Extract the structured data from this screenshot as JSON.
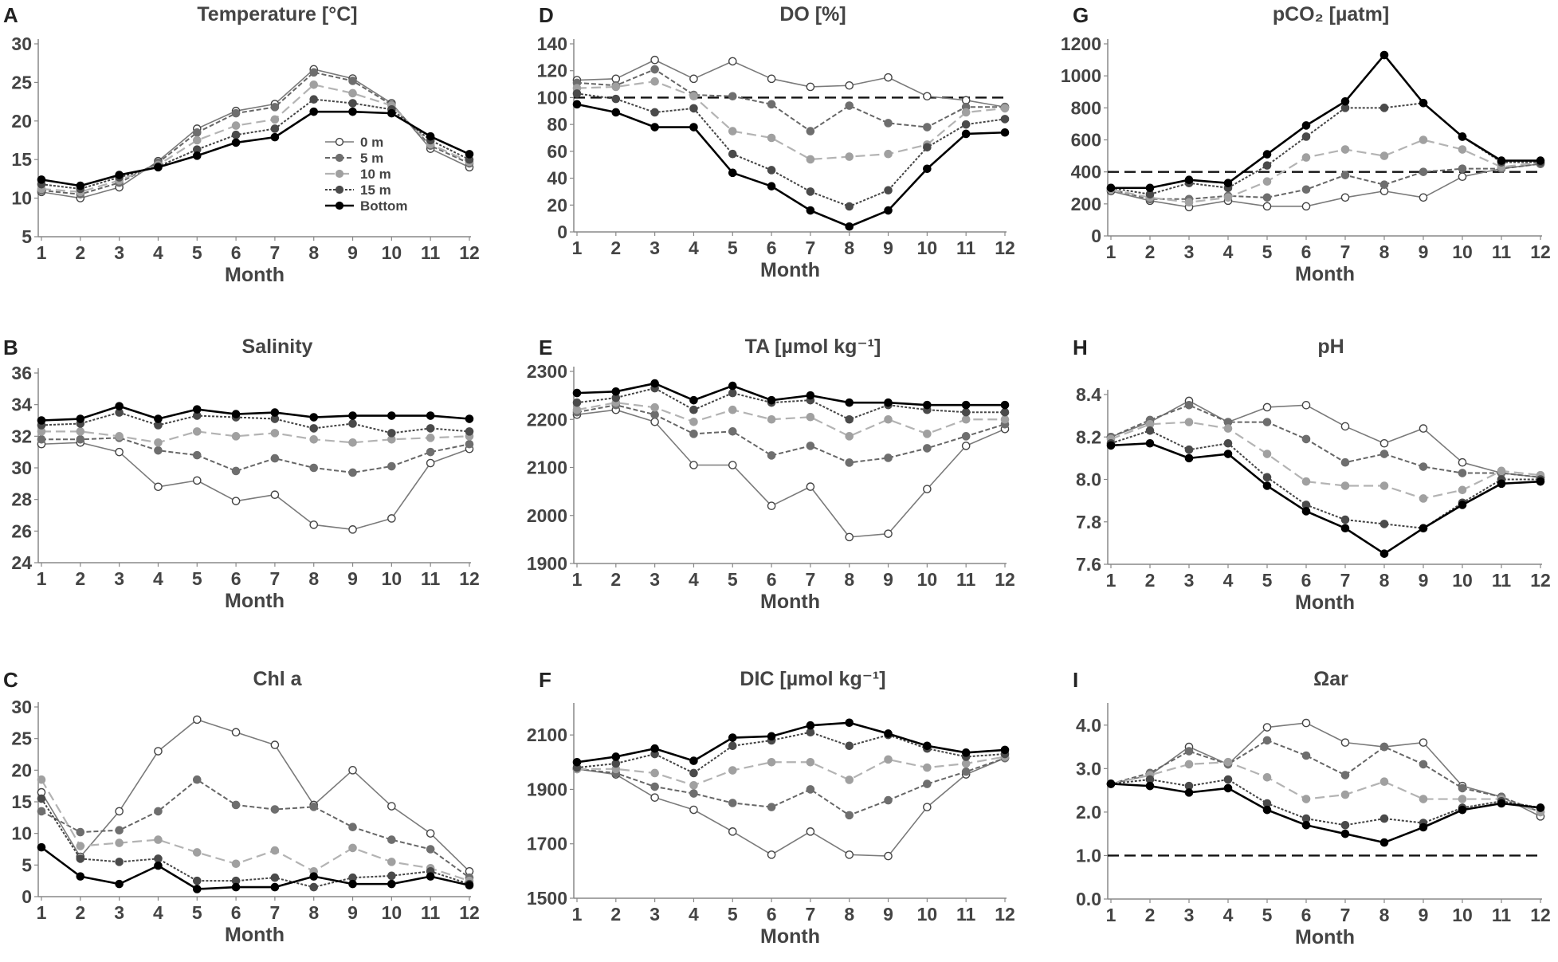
{
  "figure": {
    "x_label": "Month"
  },
  "legend": {
    "entries": [
      "0 m",
      "5 m",
      "10 m",
      "15 m",
      "Bottom"
    ]
  },
  "series_styles": [
    {
      "name": "0 m",
      "color": "#7a7a7a",
      "marker_fill": "#ffffff",
      "marker_stroke": "#444444",
      "dash": "none",
      "width": 1.6
    },
    {
      "name": "5 m",
      "color": "#666666",
      "marker_fill": "#6e6e6e",
      "marker_stroke": "#6e6e6e",
      "dash": "6,3",
      "width": 2
    },
    {
      "name": "10 m",
      "color": "#b3b3b3",
      "marker_fill": "#a0a0a0",
      "marker_stroke": "#a0a0a0",
      "dash": "12,6",
      "width": 2.2
    },
    {
      "name": "15 m",
      "color": "#444444",
      "marker_fill": "#4a4a4a",
      "marker_stroke": "#4a4a4a",
      "dash": "3,2",
      "width": 2
    },
    {
      "name": "Bottom",
      "color": "#000000",
      "marker_fill": "#000000",
      "marker_stroke": "#000000",
      "dash": "none",
      "width": 2.6
    }
  ],
  "chart_data": [
    {
      "panel": "A",
      "type": "line",
      "title": "Temperature [°C]",
      "xlabel": "Month",
      "x": [
        1,
        2,
        3,
        4,
        5,
        6,
        7,
        8,
        9,
        10,
        11,
        12
      ],
      "ylim": [
        5,
        30
      ],
      "yticks": [
        "5",
        "10",
        "15",
        "20",
        "25",
        "30"
      ],
      "yticks_values": [
        5,
        10,
        15,
        20,
        25,
        30
      ],
      "legend": true,
      "series": [
        {
          "name": "0 m",
          "values": [
            10.8,
            10,
            11.4,
            14.8,
            19,
            21.3,
            22.2,
            26.7,
            25.5,
            22.3,
            16.4,
            14
          ]
        },
        {
          "name": "5 m",
          "values": [
            11,
            10.5,
            12,
            14.6,
            18.5,
            21,
            21.8,
            26.3,
            25.2,
            22.1,
            16.8,
            14.5
          ]
        },
        {
          "name": "10 m",
          "values": [
            11.2,
            10.8,
            12.3,
            14.3,
            17.5,
            19.4,
            20.2,
            24.7,
            23.6,
            22,
            17,
            14.7
          ]
        },
        {
          "name": "15 m",
          "values": [
            11.8,
            11.2,
            12.7,
            14.1,
            16.3,
            18.2,
            19,
            22.8,
            22.3,
            21.5,
            17.5,
            15
          ]
        },
        {
          "name": "Bottom",
          "values": [
            12.4,
            11.6,
            13,
            14,
            15.5,
            17.2,
            17.9,
            21.2,
            21.2,
            21,
            18,
            15.7
          ]
        }
      ]
    },
    {
      "panel": "D",
      "type": "line",
      "title": "DO [%]",
      "xlabel": "Month",
      "x": [
        1,
        2,
        3,
        4,
        5,
        6,
        7,
        8,
        9,
        10,
        11,
        12
      ],
      "ylim": [
        0,
        140
      ],
      "yticks": [
        "0",
        "20",
        "40",
        "60",
        "80",
        "100",
        "120",
        "140"
      ],
      "yticks_values": [
        0,
        20,
        40,
        60,
        80,
        100,
        120,
        140
      ],
      "reference_line": 100,
      "series": [
        {
          "name": "0 m",
          "values": [
            113,
            114,
            128,
            114,
            127,
            114,
            108,
            109,
            115,
            101,
            98,
            93
          ]
        },
        {
          "name": "5 m",
          "values": [
            111,
            109,
            121,
            102,
            101,
            95,
            75,
            94,
            81,
            78,
            93,
            93
          ]
        },
        {
          "name": "10 m",
          "values": [
            107,
            108,
            112,
            101,
            75,
            70,
            54,
            56,
            58,
            65,
            89,
            92
          ]
        },
        {
          "name": "15 m",
          "values": [
            103,
            99,
            89,
            92,
            58,
            46,
            30,
            19,
            31,
            63,
            80,
            84
          ]
        },
        {
          "name": "Bottom",
          "values": [
            95,
            89,
            78,
            78,
            44,
            34,
            16,
            4,
            16,
            47,
            73,
            74
          ]
        }
      ]
    },
    {
      "panel": "G",
      "type": "line",
      "title": "pCO₂ [µatm]",
      "xlabel": "Month",
      "x": [
        1,
        2,
        3,
        4,
        5,
        6,
        7,
        8,
        9,
        10,
        11,
        12
      ],
      "ylim": [
        0,
        1200
      ],
      "yticks": [
        "0",
        "200",
        "400",
        "600",
        "800",
        "1000",
        "1200"
      ],
      "yticks_values": [
        0,
        200,
        400,
        600,
        800,
        1000,
        1200
      ],
      "reference_line": 400,
      "series": [
        {
          "name": "0 m",
          "values": [
            280,
            220,
            180,
            220,
            185,
            185,
            240,
            280,
            240,
            370,
            420,
            450
          ]
        },
        {
          "name": "5 m",
          "values": [
            290,
            230,
            230,
            250,
            240,
            290,
            380,
            320,
            400,
            420,
            420,
            450
          ]
        },
        {
          "name": "10 m",
          "values": [
            290,
            240,
            210,
            240,
            340,
            490,
            540,
            500,
            600,
            540,
            430,
            460
          ]
        },
        {
          "name": "15 m",
          "values": [
            300,
            260,
            330,
            300,
            440,
            620,
            800,
            800,
            830,
            620,
            460,
            460
          ]
        },
        {
          "name": "Bottom",
          "values": [
            300,
            300,
            350,
            330,
            510,
            690,
            840,
            1130,
            830,
            620,
            470,
            470
          ]
        }
      ]
    },
    {
      "panel": "B",
      "type": "line",
      "title": "Salinity",
      "xlabel": "Month",
      "x": [
        1,
        2,
        3,
        4,
        5,
        6,
        7,
        8,
        9,
        10,
        11,
        12
      ],
      "ylim": [
        24,
        36
      ],
      "yticks": [
        "24",
        "26",
        "28",
        "30",
        "32",
        "34",
        "36"
      ],
      "yticks_values": [
        24,
        26,
        28,
        30,
        32,
        34,
        36
      ],
      "series": [
        {
          "name": "0 m",
          "values": [
            31.5,
            31.6,
            31,
            28.8,
            29.2,
            27.9,
            28.3,
            26.4,
            26.1,
            26.8,
            30.3,
            31.2
          ]
        },
        {
          "name": "5 m",
          "values": [
            31.8,
            31.8,
            31.9,
            31.1,
            30.8,
            29.8,
            30.6,
            30,
            29.7,
            30.1,
            31,
            31.5
          ]
        },
        {
          "name": "10 m",
          "values": [
            32.3,
            32.3,
            32,
            31.6,
            32.3,
            32,
            32.2,
            31.8,
            31.6,
            31.8,
            31.9,
            32
          ]
        },
        {
          "name": "15 m",
          "values": [
            32.7,
            32.8,
            33.5,
            32.7,
            33.3,
            33.2,
            33.1,
            32.5,
            32.8,
            32.2,
            32.5,
            32.3
          ]
        },
        {
          "name": "Bottom",
          "values": [
            33,
            33.1,
            33.9,
            33.1,
            33.7,
            33.4,
            33.5,
            33.2,
            33.3,
            33.3,
            33.3,
            33.1
          ]
        }
      ]
    },
    {
      "panel": "E",
      "type": "line",
      "title": "TA [µmol kg⁻¹]",
      "xlabel": "Month",
      "x": [
        1,
        2,
        3,
        4,
        5,
        6,
        7,
        8,
        9,
        10,
        11,
        12
      ],
      "ylim": [
        1900,
        2300
      ],
      "yticks": [
        "1900",
        "2000",
        "2100",
        "2200",
        "2300"
      ],
      "yticks_values": [
        1900,
        2000,
        2100,
        2200,
        2300
      ],
      "series": [
        {
          "name": "0 m",
          "values": [
            2210,
            2220,
            2195,
            2105,
            2105,
            2020,
            2060,
            1955,
            1962,
            2055,
            2145,
            2180
          ]
        },
        {
          "name": "5 m",
          "values": [
            2215,
            2230,
            2210,
            2170,
            2175,
            2125,
            2145,
            2110,
            2120,
            2140,
            2165,
            2190
          ]
        },
        {
          "name": "10 m",
          "values": [
            2220,
            2235,
            2225,
            2195,
            2220,
            2200,
            2205,
            2165,
            2200,
            2170,
            2200,
            2200
          ]
        },
        {
          "name": "15 m",
          "values": [
            2235,
            2245,
            2265,
            2220,
            2255,
            2235,
            2240,
            2200,
            2230,
            2220,
            2215,
            2215
          ]
        },
        {
          "name": "Bottom",
          "values": [
            2255,
            2258,
            2275,
            2240,
            2270,
            2240,
            2250,
            2235,
            2235,
            2230,
            2230,
            2230
          ]
        }
      ]
    },
    {
      "panel": "H",
      "type": "line",
      "title": "pH",
      "xlabel": "Month",
      "x": [
        1,
        2,
        3,
        4,
        5,
        6,
        7,
        8,
        9,
        10,
        11,
        12
      ],
      "ylim": [
        7.6,
        8.4
      ],
      "yticks": [
        "7.6",
        "7.8",
        "8.0",
        "8.2",
        "8.4"
      ],
      "yticks_values": [
        7.6,
        7.8,
        8.0,
        8.2,
        8.4
      ],
      "series": [
        {
          "name": "0 m",
          "values": [
            8.2,
            8.27,
            8.37,
            8.27,
            8.34,
            8.35,
            8.25,
            8.17,
            8.24,
            8.08,
            8.03,
            8.01
          ]
        },
        {
          "name": "5 m",
          "values": [
            8.2,
            8.28,
            8.35,
            8.27,
            8.27,
            8.19,
            8.08,
            8.12,
            8.06,
            8.03,
            8.03,
            8.01
          ]
        },
        {
          "name": "10 m",
          "values": [
            8.19,
            8.26,
            8.27,
            8.24,
            8.12,
            7.99,
            7.97,
            7.97,
            7.91,
            7.95,
            8.04,
            8.02
          ]
        },
        {
          "name": "15 m",
          "values": [
            8.17,
            8.23,
            8.14,
            8.17,
            8.01,
            7.88,
            7.81,
            7.79,
            7.77,
            7.89,
            8.0,
            8.0
          ]
        },
        {
          "name": "Bottom",
          "values": [
            8.16,
            8.17,
            8.1,
            8.12,
            7.97,
            7.85,
            7.77,
            7.65,
            7.77,
            7.88,
            7.98,
            7.99
          ]
        }
      ]
    },
    {
      "panel": "C",
      "type": "line",
      "title": "Chl a",
      "xlabel": "Month",
      "x": [
        1,
        2,
        3,
        4,
        5,
        6,
        7,
        8,
        9,
        10,
        11,
        12
      ],
      "ylim": [
        0,
        30
      ],
      "yticks": [
        "0",
        "5",
        "10",
        "15",
        "20",
        "25",
        "30"
      ],
      "yticks_values": [
        0,
        5,
        10,
        15,
        20,
        25,
        30
      ],
      "series": [
        {
          "name": "0 m",
          "values": [
            16.5,
            6.3,
            13.5,
            23,
            28,
            26,
            24,
            14.5,
            20,
            14.3,
            10,
            4
          ]
        },
        {
          "name": "5 m",
          "values": [
            13.5,
            10.2,
            10.5,
            13.5,
            18.5,
            14.5,
            13.8,
            14.2,
            11,
            9,
            7.5,
            3
          ]
        },
        {
          "name": "10 m",
          "values": [
            18.5,
            8,
            8.5,
            9,
            7,
            5.2,
            7.3,
            4,
            7.7,
            5.5,
            4.5,
            2.5
          ]
        },
        {
          "name": "15 m",
          "values": [
            15.5,
            6,
            5.5,
            6,
            2.5,
            2.5,
            3,
            1.5,
            3,
            3.3,
            4,
            2
          ]
        },
        {
          "name": "Bottom",
          "values": [
            7.8,
            3.2,
            2,
            4.9,
            1.2,
            1.5,
            1.5,
            3.2,
            2,
            2,
            3.2,
            1.8
          ]
        }
      ]
    },
    {
      "panel": "F",
      "type": "line",
      "title": "DIC [µmol kg⁻¹]",
      "xlabel": "Month",
      "x": [
        1,
        2,
        3,
        4,
        5,
        6,
        7,
        8,
        9,
        10,
        11,
        12
      ],
      "ylim": [
        1500,
        2200
      ],
      "yticks": [
        "1500",
        "1700",
        "1900",
        "2100"
      ],
      "yticks_values": [
        1500,
        1700,
        1900,
        2100
      ],
      "series": [
        {
          "name": "0 m",
          "values": [
            1975,
            1955,
            1870,
            1825,
            1745,
            1660,
            1745,
            1660,
            1655,
            1835,
            1955,
            2015
          ]
        },
        {
          "name": "5 m",
          "values": [
            1975,
            1960,
            1910,
            1885,
            1850,
            1835,
            1900,
            1805,
            1860,
            1920,
            1965,
            2015
          ]
        },
        {
          "name": "10 m",
          "values": [
            1975,
            1975,
            1960,
            1915,
            1970,
            2000,
            2000,
            1935,
            2010,
            1980,
            1995,
            2020
          ]
        },
        {
          "name": "15 m",
          "values": [
            1980,
            1995,
            2030,
            1960,
            2060,
            2080,
            2110,
            2060,
            2100,
            2050,
            2020,
            2030
          ]
        },
        {
          "name": "Bottom",
          "values": [
            2000,
            2020,
            2050,
            2005,
            2090,
            2095,
            2135,
            2145,
            2105,
            2060,
            2035,
            2045
          ]
        }
      ]
    },
    {
      "panel": "I",
      "type": "line",
      "title": "Ωar",
      "xlabel": "Month",
      "x": [
        1,
        2,
        3,
        4,
        5,
        6,
        7,
        8,
        9,
        10,
        11,
        12
      ],
      "ylim": [
        0,
        4.4
      ],
      "yticks": [
        "0.0",
        "1.0",
        "2.0",
        "3.0",
        "4.0"
      ],
      "yticks_values": [
        0,
        1,
        2,
        3,
        4
      ],
      "reference_line": 1,
      "series": [
        {
          "name": "0 m",
          "values": [
            2.65,
            2.85,
            3.5,
            3.1,
            3.95,
            4.05,
            3.6,
            3.5,
            3.6,
            2.6,
            2.35,
            1.9
          ]
        },
        {
          "name": "5 m",
          "values": [
            2.65,
            2.9,
            3.4,
            3.1,
            3.65,
            3.3,
            2.85,
            3.5,
            3.1,
            2.55,
            2.35,
            2.0
          ]
        },
        {
          "name": "10 m",
          "values": [
            2.65,
            2.85,
            3.1,
            3.15,
            2.8,
            2.3,
            2.4,
            2.7,
            2.3,
            2.3,
            2.3,
            2.0
          ]
        },
        {
          "name": "15 m",
          "values": [
            2.65,
            2.75,
            2.6,
            2.75,
            2.2,
            1.85,
            1.7,
            1.85,
            1.75,
            2.1,
            2.25,
            2.1
          ]
        },
        {
          "name": "Bottom",
          "values": [
            2.65,
            2.6,
            2.45,
            2.55,
            2.05,
            1.7,
            1.5,
            1.3,
            1.65,
            2.05,
            2.2,
            2.1
          ]
        }
      ]
    }
  ]
}
